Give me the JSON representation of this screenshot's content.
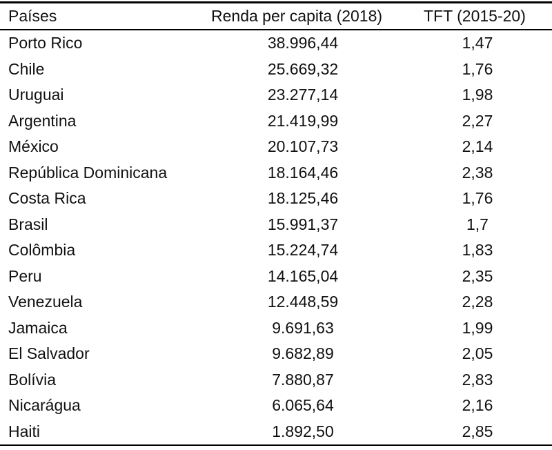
{
  "table": {
    "headers": [
      "Países",
      "Renda per capita (2018)",
      "TFT (2015-20)"
    ],
    "rows": [
      [
        "Porto Rico",
        "38.996,44",
        "1,47"
      ],
      [
        "Chile",
        "25.669,32",
        "1,76"
      ],
      [
        "Uruguai",
        "23.277,14",
        "1,98"
      ],
      [
        "Argentina",
        "21.419,99",
        "2,27"
      ],
      [
        "México",
        "20.107,73",
        "2,14"
      ],
      [
        "República Dominicana",
        "18.164,46",
        "2,38"
      ],
      [
        "Costa Rica",
        "18.125,46",
        "1,76"
      ],
      [
        "Brasil",
        "15.991,37",
        "1,7"
      ],
      [
        "Colômbia",
        "15.224,74",
        "1,83"
      ],
      [
        "Peru",
        "14.165,04",
        "2,35"
      ],
      [
        "Venezuela",
        "12.448,59",
        "2,28"
      ],
      [
        "Jamaica",
        "9.691,63",
        "1,99"
      ],
      [
        "El Salvador",
        "9.682,89",
        "2,05"
      ],
      [
        "Bolívia",
        "7.880,87",
        "2,83"
      ],
      [
        "Nicarágua",
        "6.065,64",
        "2,16"
      ],
      [
        "Haiti",
        "1.892,50",
        "2,85"
      ]
    ]
  }
}
